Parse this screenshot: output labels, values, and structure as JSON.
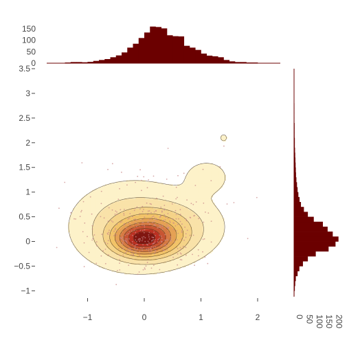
{
  "chart_data": [
    {
      "type": "contour+scatter",
      "role": "joint-density",
      "xlabel": "",
      "ylabel": "",
      "x_range": [
        -1.6,
        2.4
      ],
      "y_range": [
        -1.12,
        3.5
      ],
      "x_ticks": [
        -1,
        0,
        1,
        2
      ],
      "x_tick_labels": [
        "−1",
        "0",
        "1",
        "2"
      ],
      "y_ticks": [
        -1,
        -0.5,
        0,
        0.5,
        1,
        1.5,
        2,
        2.5,
        3,
        3.5
      ],
      "y_tick_labels": [
        "−1",
        "−0.5",
        "0",
        "0.5",
        "1",
        "1.5",
        "2",
        "2.5",
        "3",
        "3.5"
      ],
      "grid": false,
      "colors": {
        "scatter": "#c98a8a",
        "contour_low": "#fdf2c9",
        "contour_mid": "#f1c163",
        "contour_high": "#b7281f",
        "contour_peak": "#3b0000",
        "contour_line": "#3a2a1a"
      },
      "density_components": [
        {
          "mx": -0.05,
          "my": 0.05,
          "sx": 0.28,
          "sy": 0.18,
          "weight": 1.0
        },
        {
          "mx": 0.12,
          "my": 0.12,
          "sx": 0.35,
          "sy": 0.25,
          "weight": 0.6
        },
        {
          "mx": -0.2,
          "my": 0.3,
          "sx": 0.55,
          "sy": 0.45,
          "weight": 0.22
        },
        {
          "mx": 0.6,
          "my": 0.3,
          "sx": 0.45,
          "sy": 0.35,
          "weight": 0.12
        },
        {
          "mx": 1.1,
          "my": 1.3,
          "sx": 0.25,
          "sy": 0.22,
          "weight": 0.06
        },
        {
          "mx": 1.4,
          "my": 2.1,
          "sx": 0.1,
          "sy": 0.12,
          "weight": 0.03
        }
      ],
      "contour_levels": [
        0.015,
        0.06,
        0.12,
        0.2,
        0.3,
        0.42,
        0.55,
        0.7,
        0.85,
        1.0
      ],
      "scatter_points": 420
    },
    {
      "type": "bar",
      "role": "marginal-x-histogram",
      "color": "#6b0000",
      "x_start": -1.4,
      "bin_width": 0.1,
      "values": [
        3,
        5,
        5,
        4,
        6,
        10,
        14,
        18,
        26,
        34,
        47,
        68,
        85,
        110,
        134,
        160,
        158,
        152,
        122,
        118,
        117,
        76,
        68,
        58,
        42,
        33,
        30,
        26,
        14,
        8,
        5,
        5,
        3,
        3
      ],
      "y_range": [
        0,
        180
      ],
      "y_ticks": [
        0,
        50,
        100,
        150
      ],
      "y_tick_labels": [
        "0",
        "50",
        "100",
        "150"
      ]
    },
    {
      "type": "bar",
      "orientation": "horizontal",
      "role": "marginal-y-histogram",
      "color": "#6b0000",
      "y_start": -1.1,
      "bin_width": 0.1,
      "values": [
        2,
        4,
        6,
        9,
        18,
        27,
        45,
        70,
        110,
        175,
        210,
        225,
        196,
        170,
        146,
        100,
        70,
        50,
        35,
        28,
        22,
        18,
        15,
        12,
        10,
        9,
        8,
        7,
        6,
        5,
        4,
        4,
        3,
        3,
        3,
        2,
        2,
        2,
        2,
        1,
        1,
        1,
        1,
        1,
        1
      ],
      "x_range": [
        0,
        240
      ],
      "x_ticks": [
        0,
        50,
        100,
        150,
        200
      ],
      "x_tick_labels": [
        "0",
        "50",
        "100",
        "150",
        "200"
      ]
    }
  ]
}
